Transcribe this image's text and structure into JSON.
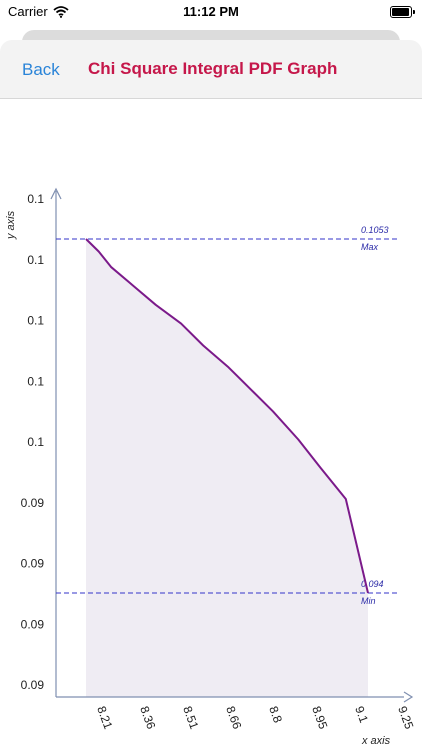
{
  "status_bar": {
    "carrier": "Carrier",
    "time": "11:12 PM"
  },
  "nav": {
    "back_label": "Back",
    "title": "Chi Square Integral PDF Graph"
  },
  "colors": {
    "title": "#c5174a",
    "back": "#2a84d8",
    "curve": "#7b1a8a",
    "fill": "#efecf3",
    "reference_line": "#3333c8",
    "axis": "#7f8fb0"
  },
  "chart_data": {
    "type": "area",
    "xlabel": "x axis",
    "ylabel": "y axis",
    "x_ticks": [
      "8.21",
      "8.36",
      "8.51",
      "8.66",
      "8.8",
      "8.95",
      "9.1",
      "9.25"
    ],
    "y_ticks": [
      "0.1",
      "0.1",
      "0.1",
      "0.1",
      "0.1",
      "0.09",
      "0.09",
      "0.09",
      "0.09"
    ],
    "x": [
      8.21,
      8.25,
      8.29,
      8.36,
      8.43,
      8.51,
      8.58,
      8.66,
      8.73,
      8.8,
      8.88,
      8.95,
      9.03,
      9.1
    ],
    "y": [
      0.1053,
      0.1049,
      0.1044,
      0.1038,
      0.1032,
      0.1026,
      0.1019,
      0.1012,
      0.1005,
      0.0998,
      0.0989,
      0.098,
      0.097,
      0.094
    ],
    "max_line": {
      "value": 0.1053,
      "value_label": "0.1053",
      "label": "Max"
    },
    "min_line": {
      "value": 0.094,
      "value_label": "0.094",
      "label": "Min"
    }
  }
}
